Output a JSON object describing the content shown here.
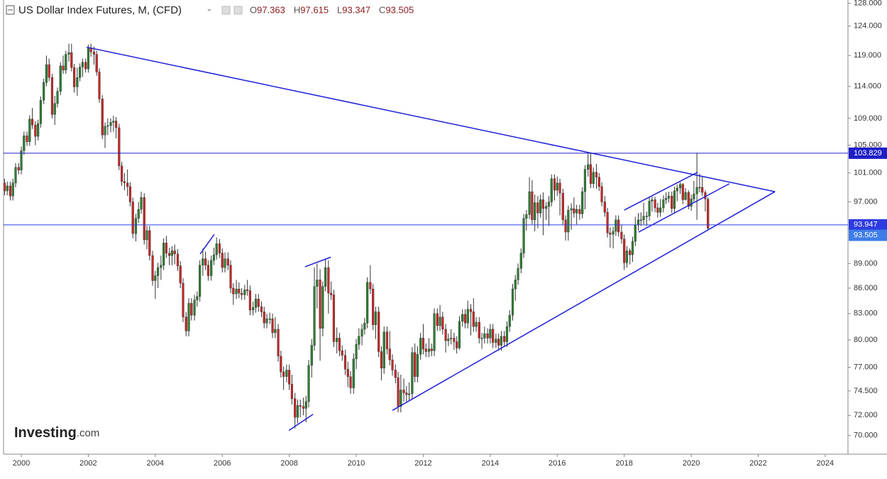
{
  "chart_data": {
    "type": "candlestick",
    "title": "US Dollar Index Futures, M, (CFD)",
    "legend_keys": [
      "O",
      "H",
      "L",
      "C"
    ],
    "watermark": "Investing",
    "watermark_suffix": ".com",
    "log": true,
    "up_color": "#2e7d32",
    "down_color": "#c62828",
    "xlim": [
      1999.47,
      2024.68
    ],
    "ylim": [
      68.2,
      128.6
    ],
    "xticks": [
      2000,
      2002,
      2004,
      2006,
      2008,
      2010,
      2012,
      2014,
      2016,
      2018,
      2020,
      2022,
      2024
    ],
    "yticks": [
      {
        "value": 128,
        "label": "128.000"
      },
      {
        "value": 124,
        "label": "124.000"
      },
      {
        "value": 119,
        "label": "119.000"
      },
      {
        "value": 114,
        "label": "114.000"
      },
      {
        "value": 109,
        "label": "109.000"
      },
      {
        "value": 105,
        "label": "105.000"
      },
      {
        "value": 101,
        "label": "101.000"
      },
      {
        "value": 97,
        "label": "97.000"
      },
      {
        "value": 89,
        "label": "89.000"
      },
      {
        "value": 86,
        "label": "86.000"
      },
      {
        "value": 83,
        "label": "83.000"
      },
      {
        "value": 80,
        "label": "80.000"
      },
      {
        "value": 77,
        "label": "77.000"
      },
      {
        "value": 74.5,
        "label": "74.500"
      },
      {
        "value": 72,
        "label": "72.000"
      },
      {
        "value": 70,
        "label": "70.000"
      }
    ],
    "price_lines": [
      {
        "value": 103.829,
        "color": "#1e1ec8"
      },
      {
        "value": 93.947,
        "color": "#2e3be0"
      }
    ],
    "last_price_color": "#3f7de8",
    "trendline_color": "#1f1fd8",
    "trendlines": [
      {
        "x": [
          2001.95,
          2022.5
        ],
        "y": [
          120.4,
          98.4
        ]
      },
      {
        "x": [
          2011.08,
          2022.5
        ],
        "y": [
          72.5,
          98.4
        ]
      },
      {
        "x": [
          2007.99,
          2008.71
        ],
        "y": [
          70.5,
          72.1
        ]
      },
      {
        "x": [
          2008.47,
          2009.24
        ],
        "y": [
          88.6,
          89.8
        ]
      },
      {
        "x": [
          2005.34,
          2005.76
        ],
        "y": [
          90.2,
          92.7
        ]
      },
      {
        "x": [
          2018.0,
          2020.19
        ],
        "y": [
          95.9,
          101.1
        ]
      },
      {
        "x": [
          2018.43,
          2021.14
        ],
        "y": [
          93.0,
          99.5
        ]
      }
    ],
    "x": [
      1999.5,
      1999.58,
      1999.67,
      1999.75,
      1999.83,
      1999.92,
      2000,
      2000.08,
      2000.17,
      2000.25,
      2000.33,
      2000.42,
      2000.5,
      2000.58,
      2000.67,
      2000.75,
      2000.83,
      2000.92,
      2001,
      2001.08,
      2001.17,
      2001.25,
      2001.33,
      2001.42,
      2001.5,
      2001.58,
      2001.67,
      2001.75,
      2001.83,
      2001.92,
      2002,
      2002.08,
      2002.17,
      2002.25,
      2002.33,
      2002.42,
      2002.5,
      2002.58,
      2002.67,
      2002.75,
      2002.83,
      2002.92,
      2003,
      2003.08,
      2003.17,
      2003.25,
      2003.33,
      2003.42,
      2003.5,
      2003.58,
      2003.67,
      2003.75,
      2003.83,
      2003.92,
      2004,
      2004.08,
      2004.17,
      2004.25,
      2004.33,
      2004.42,
      2004.5,
      2004.58,
      2004.67,
      2004.75,
      2004.83,
      2004.92,
      2005,
      2005.08,
      2005.17,
      2005.25,
      2005.33,
      2005.42,
      2005.5,
      2005.58,
      2005.67,
      2005.75,
      2005.83,
      2005.92,
      2006,
      2006.08,
      2006.17,
      2006.25,
      2006.33,
      2006.42,
      2006.5,
      2006.58,
      2006.67,
      2006.75,
      2006.83,
      2006.92,
      2007,
      2007.08,
      2007.17,
      2007.25,
      2007.33,
      2007.42,
      2007.5,
      2007.58,
      2007.67,
      2007.75,
      2007.83,
      2007.92,
      2008,
      2008.08,
      2008.17,
      2008.25,
      2008.33,
      2008.42,
      2008.5,
      2008.58,
      2008.67,
      2008.75,
      2008.83,
      2008.92,
      2009,
      2009.08,
      2009.17,
      2009.25,
      2009.33,
      2009.42,
      2009.5,
      2009.58,
      2009.67,
      2009.75,
      2009.83,
      2009.92,
      2010,
      2010.08,
      2010.17,
      2010.25,
      2010.33,
      2010.42,
      2010.5,
      2010.58,
      2010.67,
      2010.75,
      2010.83,
      2010.92,
      2011,
      2011.08,
      2011.17,
      2011.25,
      2011.33,
      2011.42,
      2011.5,
      2011.58,
      2011.67,
      2011.75,
      2011.83,
      2011.92,
      2012,
      2012.08,
      2012.17,
      2012.25,
      2012.33,
      2012.42,
      2012.5,
      2012.58,
      2012.67,
      2012.75,
      2012.83,
      2012.92,
      2013,
      2013.08,
      2013.17,
      2013.25,
      2013.33,
      2013.42,
      2013.5,
      2013.58,
      2013.67,
      2013.75,
      2013.83,
      2013.92,
      2014,
      2014.08,
      2014.17,
      2014.25,
      2014.33,
      2014.42,
      2014.5,
      2014.58,
      2014.67,
      2014.75,
      2014.83,
      2014.92,
      2015,
      2015.08,
      2015.17,
      2015.25,
      2015.33,
      2015.42,
      2015.5,
      2015.58,
      2015.67,
      2015.75,
      2015.83,
      2015.92,
      2016,
      2016.08,
      2016.17,
      2016.25,
      2016.33,
      2016.42,
      2016.5,
      2016.58,
      2016.67,
      2016.75,
      2016.83,
      2016.92,
      2017,
      2017.08,
      2017.17,
      2017.25,
      2017.33,
      2017.42,
      2017.5,
      2017.58,
      2017.67,
      2017.75,
      2017.83,
      2017.92,
      2018,
      2018.08,
      2018.17,
      2018.25,
      2018.33,
      2018.42,
      2018.5,
      2018.58,
      2018.67,
      2018.75,
      2018.83,
      2018.92,
      2019,
      2019.08,
      2019.17,
      2019.25,
      2019.33,
      2019.42,
      2019.5,
      2019.58,
      2019.67,
      2019.75,
      2019.83,
      2019.92,
      2020,
      2020.08,
      2020.17,
      2020.25,
      2020.33,
      2020.42,
      2020.5
    ],
    "open": [
      99.6,
      98.5,
      99.2,
      97.8,
      99.6,
      101.8,
      101.4,
      104.2,
      106.4,
      105.5,
      108.9,
      108.0,
      106.3,
      108.2,
      111.8,
      114.6,
      117.5,
      115.4,
      109.6,
      111.3,
      113.2,
      117.3,
      116.6,
      119.2,
      119.5,
      117.0,
      113.9,
      115.4,
      117.1,
      117.9,
      116.8,
      120.2,
      119.6,
      119.2,
      116.3,
      112.0,
      106.5,
      107.8,
      107.9,
      108.4,
      108.6,
      107.6,
      102.0,
      99.8,
      99.6,
      99.1,
      97.0,
      92.8,
      94.8,
      96.0,
      97.6,
      92.0,
      93.2,
      90.0,
      86.9,
      87.5,
      88.5,
      88.8,
      91.6,
      90.3,
      90.0,
      90.6,
      90.2,
      88.7,
      86.6,
      82.6,
      81.0,
      84.2,
      82.8,
      84.6,
      85.0,
      88.8,
      89.6,
      88.8,
      87.5,
      89.4,
      90.1,
      91.5,
      90.3,
      88.5,
      89.6,
      88.8,
      86.0,
      85.3,
      85.9,
      85.4,
      85.2,
      85.8,
      85.7,
      83.4,
      83.7,
      84.7,
      83.8,
      83.2,
      81.9,
      82.4,
      82.4,
      80.8,
      81.2,
      78.2,
      76.5,
      76.0,
      76.7,
      75.2,
      73.7,
      71.8,
      73.0,
      72.9,
      72.7,
      73.4,
      77.2,
      79.4,
      86.2,
      87.0,
      81.3,
      86.2,
      88.5,
      85.4,
      85.2,
      79.8,
      80.2,
      78.8,
      78.3,
      76.8,
      76.0,
      74.8,
      77.9,
      79.5,
      80.4,
      81.2,
      81.9,
      86.7,
      85.9,
      81.7,
      83.2,
      78.7,
      76.9,
      80.9,
      79.0,
      77.8,
      76.7,
      75.9,
      72.9,
      74.6,
      74.3,
      74.1,
      74.2,
      78.6,
      76.0,
      78.4,
      80.2,
      79.0,
      78.7,
      79.0,
      78.8,
      83.0,
      81.6,
      82.6,
      81.2,
      79.9,
      80.1,
      80.2,
      79.8,
      79.1,
      82.1,
      82.9,
      81.9,
      83.5,
      83.2,
      81.5,
      82.0,
      80.2,
      80.2,
      80.7,
      80.2,
      81.2,
      79.7,
      80.1,
      79.4,
      80.4,
      79.8,
      81.5,
      82.8,
      85.9,
      87.0,
      88.4,
      90.3,
      94.8,
      95.3,
      98.4,
      94.6,
      96.9,
      95.5,
      97.3,
      96.1,
      96.4,
      97.0,
      100.2,
      98.6,
      99.6,
      98.2,
      94.6,
      93.0,
      95.9,
      96.1,
      95.5,
      96.0,
      95.4,
      98.4,
      101.5,
      102.2,
      99.5,
      101.1,
      100.4,
      99.1,
      97.0,
      95.6,
      92.9,
      92.7,
      93.1,
      94.6,
      93.0,
      92.1,
      89.1,
      90.6,
      90.1,
      91.8,
      93.9,
      94.6,
      94.6,
      95.1,
      95.1,
      97.1,
      97.3,
      96.2,
      95.6,
      96.2,
      97.3,
      97.5,
      97.8,
      96.1,
      98.5,
      98.9,
      99.4,
      97.3,
      98.3,
      96.4,
      97.4,
      98.1,
      99.0,
      99.0,
      98.3,
      97.363
    ],
    "high": [
      100.2,
      99.8,
      99.8,
      100.2,
      102.4,
      102.4,
      104.8,
      107.0,
      107.0,
      109.5,
      110.6,
      108.6,
      108.8,
      112.4,
      115.2,
      119.0,
      118.5,
      116.0,
      112.5,
      113.8,
      117.9,
      119.0,
      119.8,
      121.0,
      121.0,
      117.6,
      117.0,
      117.7,
      118.5,
      118.5,
      120.8,
      121.0,
      120.5,
      119.8,
      116.9,
      112.6,
      108.4,
      109.0,
      109.0,
      109.4,
      109.2,
      108.2,
      102.6,
      101.0,
      101.5,
      99.7,
      97.6,
      95.4,
      97.0,
      98.4,
      98.2,
      93.8,
      93.8,
      90.6,
      88.1,
      89.1,
      90.0,
      92.2,
      92.5,
      91.0,
      91.2,
      91.4,
      90.8,
      89.3,
      87.2,
      83.2,
      84.8,
      84.8,
      85.2,
      85.6,
      89.4,
      90.9,
      90.5,
      89.4,
      90.0,
      91.0,
      92.3,
      92.1,
      90.9,
      90.4,
      90.4,
      89.4,
      86.6,
      87.0,
      86.7,
      86.0,
      86.4,
      87.0,
      86.3,
      84.4,
      85.3,
      85.3,
      84.4,
      83.8,
      83.0,
      83.1,
      83.0,
      82.6,
      81.8,
      78.8,
      77.1,
      77.3,
      77.3,
      76.2,
      74.3,
      73.6,
      73.6,
      73.8,
      74.0,
      77.8,
      80.1,
      88.5,
      89.0,
      88.3,
      86.8,
      89.6,
      89.4,
      86.8,
      85.8,
      81.4,
      80.8,
      79.4,
      78.9,
      77.6,
      76.6,
      78.5,
      80.1,
      81.3,
      81.8,
      82.5,
      87.3,
      88.8,
      86.5,
      83.8,
      83.8,
      79.3,
      81.5,
      81.5,
      81.0,
      78.4,
      77.3,
      76.5,
      76.2,
      75.8,
      75.0,
      75.4,
      79.2,
      79.6,
      79.3,
      80.8,
      81.8,
      79.6,
      80.2,
      79.6,
      83.6,
      83.6,
      84.0,
      83.2,
      81.8,
      80.7,
      81.2,
      80.8,
      80.4,
      82.7,
      83.5,
      83.5,
      84.5,
      84.1,
      84.8,
      82.6,
      82.6,
      80.8,
      81.5,
      81.3,
      81.8,
      81.8,
      80.7,
      80.7,
      81.0,
      81.0,
      82.1,
      83.4,
      86.5,
      87.6,
      89.0,
      90.9,
      95.4,
      95.9,
      100.4,
      100.0,
      98.0,
      97.8,
      98.0,
      98.3,
      97.0,
      97.8,
      100.8,
      100.8,
      100.5,
      100.2,
      98.8,
      95.2,
      96.5,
      96.8,
      97.6,
      96.6,
      96.6,
      99.0,
      102.1,
      103.8,
      103.8,
      101.8,
      102.3,
      101.0,
      99.7,
      97.8,
      96.2,
      93.6,
      93.7,
      95.2,
      95.2,
      94.0,
      92.7,
      91.2,
      90.9,
      92.4,
      95.0,
      95.5,
      95.6,
      96.9,
      95.7,
      97.7,
      97.7,
      97.7,
      96.9,
      97.4,
      97.9,
      98.3,
      98.4,
      98.4,
      99.1,
      99.4,
      99.7,
      99.6,
      98.9,
      98.6,
      98.0,
      99.9,
      103.9,
      100.9,
      100.5,
      98.6,
      97.615
    ],
    "low": [
      97.9,
      97.9,
      97.2,
      97.2,
      99.0,
      100.8,
      100.8,
      103.6,
      104.9,
      104.9,
      107.4,
      105.0,
      105.7,
      107.6,
      111.2,
      114.0,
      114.8,
      109.0,
      108.0,
      110.7,
      112.6,
      116.0,
      116.0,
      118.0,
      116.4,
      113.0,
      112.5,
      114.8,
      115.5,
      116.2,
      116.2,
      118.8,
      117.5,
      115.7,
      111.4,
      105.9,
      104.6,
      106.5,
      106.9,
      107.0,
      106.0,
      101.4,
      99.2,
      98.6,
      97.8,
      96.4,
      92.2,
      91.8,
      94.2,
      95.4,
      91.4,
      90.8,
      89.4,
      86.3,
      84.7,
      86.0,
      87.0,
      88.2,
      89.7,
      88.8,
      88.8,
      88.9,
      88.1,
      86.0,
      82.0,
      80.4,
      80.4,
      82.2,
      82.2,
      83.8,
      84.4,
      87.5,
      88.2,
      86.9,
      86.9,
      88.8,
      89.5,
      89.7,
      87.9,
      87.9,
      88.2,
      85.4,
      84.0,
      84.7,
      84.8,
      84.6,
      84.6,
      85.1,
      82.8,
      82.8,
      83.1,
      83.2,
      82.6,
      81.3,
      81.3,
      81.8,
      80.2,
      80.2,
      77.6,
      75.9,
      74.6,
      75.4,
      74.6,
      73.1,
      70.7,
      71.2,
      71.8,
      72.0,
      71.3,
      72.8,
      75.9,
      78.8,
      83.6,
      77.7,
      80.4,
      85.6,
      83.0,
      84.6,
      79.2,
      78.5,
      78.2,
      77.7,
      76.2,
      74.9,
      74.2,
      74.2,
      76.8,
      78.9,
      79.4,
      80.6,
      81.3,
      85.3,
      81.1,
      80.1,
      78.1,
      75.6,
      76.3,
      78.4,
      77.2,
      76.1,
      75.3,
      72.3,
      72.3,
      73.4,
      73.4,
      73.5,
      73.6,
      75.4,
      75.4,
      77.8,
      78.4,
      78.1,
      78.1,
      78.2,
      78.2,
      81.0,
      81.0,
      80.6,
      78.6,
      79.3,
      79.5,
      78.9,
      78.5,
      78.9,
      81.5,
      81.3,
      81.3,
      80.5,
      80.9,
      80.9,
      79.6,
      79.0,
      79.6,
      79.6,
      79.6,
      79.1,
      79.1,
      78.8,
      78.8,
      79.2,
      79.2,
      80.9,
      82.2,
      84.5,
      86.4,
      87.8,
      89.7,
      93.2,
      94.7,
      94.0,
      93.1,
      93.5,
      94.9,
      92.6,
      94.6,
      93.8,
      96.4,
      97.2,
      97.8,
      95.2,
      94.0,
      91.9,
      91.9,
      93.3,
      94.9,
      94.0,
      94.6,
      94.8,
      96.0,
      100.5,
      98.9,
      98.9,
      98.8,
      98.5,
      96.4,
      95.0,
      92.3,
      91.0,
      90.9,
      92.5,
      92.4,
      91.5,
      88.2,
      88.5,
      88.9,
      89.2,
      91.2,
      93.2,
      93.8,
      94.0,
      93.8,
      94.5,
      95.7,
      95.6,
      94.9,
      95.0,
      95.6,
      96.7,
      96.9,
      95.5,
      95.5,
      97.1,
      98.1,
      96.7,
      97.2,
      96.0,
      95.8,
      97.0,
      94.6,
      98.3,
      97.8,
      95.7,
      93.347
    ],
    "close": [
      98.5,
      99.2,
      97.8,
      99.6,
      101.8,
      101.4,
      104.2,
      106.4,
      105.5,
      108.9,
      108.0,
      106.3,
      108.2,
      111.8,
      114.6,
      117.5,
      115.4,
      109.6,
      111.3,
      113.2,
      117.3,
      116.6,
      119.2,
      119.5,
      117.0,
      113.9,
      115.4,
      117.1,
      117.9,
      116.8,
      120.2,
      119.6,
      119.2,
      116.3,
      112.0,
      106.5,
      107.8,
      107.9,
      108.4,
      108.6,
      107.6,
      102.0,
      99.8,
      99.6,
      99.1,
      97.0,
      92.8,
      94.8,
      96.0,
      97.6,
      92.0,
      93.2,
      90.0,
      86.9,
      87.5,
      88.5,
      88.8,
      91.6,
      90.3,
      90.0,
      90.6,
      90.2,
      88.7,
      86.6,
      82.6,
      81.0,
      84.2,
      82.8,
      84.6,
      85.0,
      88.8,
      89.6,
      88.8,
      87.5,
      89.4,
      90.1,
      91.5,
      90.3,
      88.5,
      89.6,
      88.8,
      86.0,
      85.3,
      85.9,
      85.4,
      85.2,
      85.8,
      85.7,
      83.4,
      83.7,
      84.7,
      83.8,
      83.2,
      81.9,
      82.4,
      82.4,
      80.8,
      81.2,
      78.2,
      76.5,
      76.0,
      76.7,
      75.2,
      73.7,
      71.8,
      73.0,
      72.9,
      72.7,
      73.4,
      77.2,
      79.4,
      86.2,
      87.0,
      81.3,
      86.2,
      88.5,
      85.4,
      85.2,
      79.8,
      80.2,
      78.8,
      78.3,
      76.8,
      76.0,
      74.8,
      77.9,
      79.5,
      80.4,
      81.2,
      81.9,
      86.7,
      85.9,
      81.7,
      83.2,
      78.7,
      76.9,
      80.9,
      79.0,
      77.8,
      76.7,
      75.9,
      72.9,
      74.6,
      74.3,
      74.1,
      74.2,
      78.6,
      76.0,
      78.4,
      80.2,
      79.0,
      78.7,
      79.0,
      78.8,
      83.0,
      81.6,
      82.6,
      81.2,
      79.9,
      80.1,
      80.2,
      79.8,
      79.1,
      82.1,
      82.9,
      81.9,
      83.5,
      83.2,
      81.5,
      82.0,
      80.2,
      80.2,
      80.7,
      80.2,
      81.2,
      79.7,
      80.1,
      79.4,
      80.4,
      79.8,
      81.5,
      82.8,
      85.9,
      87.0,
      88.4,
      90.3,
      94.8,
      95.3,
      98.4,
      94.6,
      96.9,
      95.5,
      97.3,
      96.1,
      96.4,
      97.0,
      100.2,
      98.6,
      99.6,
      98.2,
      94.6,
      93.0,
      95.9,
      96.1,
      95.5,
      96.0,
      95.4,
      98.4,
      101.5,
      102.2,
      99.5,
      101.1,
      100.4,
      99.1,
      97.0,
      95.6,
      92.9,
      92.7,
      93.1,
      94.6,
      93.0,
      92.1,
      89.1,
      90.6,
      90.1,
      91.8,
      93.9,
      94.6,
      94.6,
      95.1,
      95.1,
      97.1,
      97.3,
      96.2,
      95.6,
      96.2,
      97.3,
      97.5,
      97.8,
      96.1,
      98.5,
      98.9,
      99.4,
      97.3,
      98.3,
      96.4,
      97.4,
      98.1,
      99.0,
      99.0,
      98.3,
      97.4,
      93.505
    ]
  }
}
